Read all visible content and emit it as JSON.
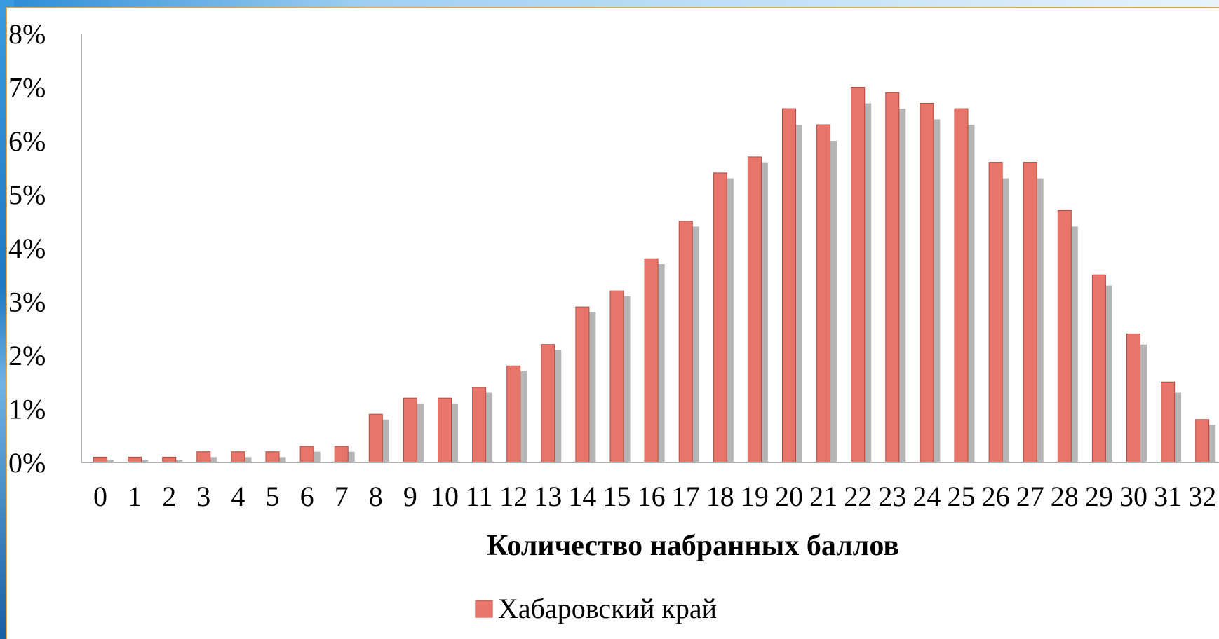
{
  "chart_data": {
    "type": "bar",
    "categories": [
      "0",
      "1",
      "2",
      "3",
      "4",
      "5",
      "6",
      "7",
      "8",
      "9",
      "10",
      "11",
      "12",
      "13",
      "14",
      "15",
      "16",
      "17",
      "18",
      "19",
      "20",
      "21",
      "22",
      "23",
      "24",
      "25",
      "26",
      "27",
      "28",
      "29",
      "30",
      "31",
      "32"
    ],
    "series": [
      {
        "name": "Хабаровский край",
        "values": [
          0.1,
          0.1,
          0.1,
          0.2,
          0.2,
          0.2,
          0.3,
          0.3,
          0.9,
          1.2,
          1.2,
          1.4,
          1.8,
          2.2,
          2.9,
          3.2,
          3.8,
          4.5,
          5.4,
          5.7,
          6.6,
          6.3,
          7.0,
          6.9,
          6.7,
          6.6,
          5.6,
          5.6,
          4.7,
          3.5,
          2.4,
          1.5,
          0.8
        ],
        "color": "#e8756a"
      }
    ],
    "shadow_values": [
      0.05,
      0.05,
      0.05,
      0.1,
      0.1,
      0.1,
      0.2,
      0.2,
      0.8,
      1.1,
      1.1,
      1.3,
      1.7,
      2.1,
      2.8,
      3.1,
      3.7,
      4.4,
      5.3,
      5.6,
      6.3,
      6.0,
      6.7,
      6.6,
      6.4,
      6.3,
      5.3,
      5.3,
      4.4,
      3.3,
      2.2,
      1.3,
      0.7
    ],
    "y_ticks": [
      "0%",
      "1%",
      "2%",
      "3%",
      "4%",
      "5%",
      "6%",
      "7%",
      "8%"
    ],
    "ylim": [
      0,
      8
    ],
    "xlabel": "Количество набранных баллов",
    "ylabel": "",
    "legend_position": "bottom",
    "grid": false
  }
}
